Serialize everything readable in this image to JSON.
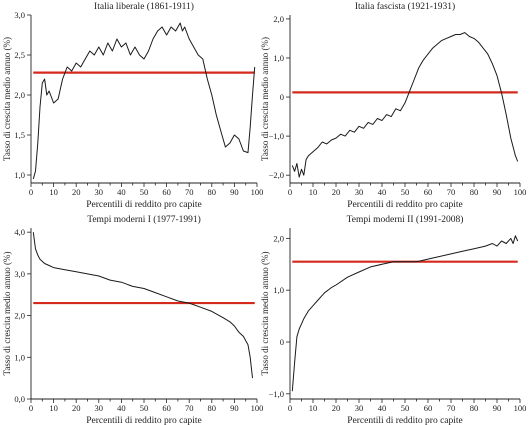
{
  "chart_data": [
    {
      "type": "line",
      "title": "Italia liberale (1861-1911)",
      "xlabel": "Percentili di reddito pro capite",
      "ylabel": "Tasso di crescita medio annuo (%)",
      "xlim": [
        0,
        100
      ],
      "ylim": [
        0.9,
        3.0
      ],
      "xticks": [
        0,
        10,
        20,
        30,
        40,
        50,
        60,
        70,
        80,
        90,
        100
      ],
      "yticks": [
        1.0,
        1.5,
        2.0,
        2.5,
        3.0
      ],
      "ytick_labels": [
        "1,0",
        "1,5",
        "2,0",
        "2,5",
        "3,0"
      ],
      "average_line": 2.28,
      "average_color": "#d42a1e",
      "series": [
        {
          "x": [
            1,
            2,
            3,
            4,
            5,
            6,
            7,
            8,
            10,
            12,
            14,
            16,
            18,
            20,
            22,
            24,
            26,
            28,
            30,
            32,
            34,
            36,
            38,
            40,
            42,
            44,
            46,
            48,
            50,
            52,
            54,
            56,
            58,
            60,
            62,
            64,
            66,
            67,
            68,
            70,
            72,
            74,
            76,
            78,
            80,
            82,
            84,
            86,
            88,
            90,
            92,
            94,
            96,
            97,
            98,
            99
          ],
          "y": [
            0.95,
            1.05,
            1.4,
            1.85,
            2.15,
            2.2,
            2.0,
            2.05,
            1.9,
            1.95,
            2.2,
            2.35,
            2.3,
            2.4,
            2.35,
            2.45,
            2.55,
            2.5,
            2.6,
            2.5,
            2.65,
            2.55,
            2.7,
            2.6,
            2.65,
            2.5,
            2.6,
            2.5,
            2.45,
            2.55,
            2.7,
            2.8,
            2.85,
            2.75,
            2.85,
            2.8,
            2.9,
            2.8,
            2.85,
            2.7,
            2.6,
            2.5,
            2.45,
            2.2,
            2.0,
            1.75,
            1.55,
            1.35,
            1.4,
            1.5,
            1.45,
            1.3,
            1.28,
            1.6,
            2.0,
            2.35
          ]
        }
      ]
    },
    {
      "type": "line",
      "title": "Italia fascista (1921-1931)",
      "xlabel": "Percentili di reddito pro capite",
      "ylabel": "Tasso di crescita medio annuo (%)",
      "xlim": [
        0,
        100
      ],
      "ylim": [
        -2.2,
        2.1
      ],
      "xticks": [
        0,
        10,
        20,
        30,
        40,
        50,
        60,
        70,
        80,
        90,
        100
      ],
      "yticks": [
        -2.0,
        -1.0,
        0,
        1.0,
        2.0
      ],
      "ytick_labels": [
        "−2,0",
        "−1,0",
        "0",
        "1,0",
        "2,0"
      ],
      "average_line": 0.12,
      "average_color": "#d42a1e",
      "series": [
        {
          "x": [
            1,
            2,
            3,
            4,
            5,
            6,
            7,
            8,
            10,
            12,
            14,
            16,
            18,
            20,
            22,
            24,
            26,
            28,
            30,
            32,
            34,
            36,
            38,
            40,
            42,
            44,
            46,
            48,
            50,
            52,
            54,
            56,
            58,
            60,
            62,
            64,
            66,
            68,
            70,
            72,
            74,
            76,
            78,
            80,
            82,
            84,
            86,
            88,
            90,
            92,
            94,
            96,
            98,
            99
          ],
          "y": [
            -1.75,
            -1.9,
            -1.7,
            -2.05,
            -1.85,
            -2.0,
            -1.6,
            -1.5,
            -1.4,
            -1.3,
            -1.15,
            -1.2,
            -1.1,
            -1.05,
            -0.95,
            -1.0,
            -0.85,
            -0.9,
            -0.75,
            -0.8,
            -0.65,
            -0.7,
            -0.55,
            -0.6,
            -0.45,
            -0.5,
            -0.3,
            -0.35,
            -0.15,
            0.15,
            0.45,
            0.75,
            0.95,
            1.1,
            1.25,
            1.35,
            1.45,
            1.5,
            1.55,
            1.6,
            1.6,
            1.65,
            1.55,
            1.5,
            1.4,
            1.25,
            1.1,
            0.85,
            0.55,
            0.1,
            -0.45,
            -1.05,
            -1.5,
            -1.65
          ]
        }
      ]
    },
    {
      "type": "line",
      "title": "Tempi moderni I (1977-1991)",
      "xlabel": "Percentili di reddito pro capite",
      "ylabel": "Tasso di crescita medio annuo (%)",
      "xlim": [
        0,
        100
      ],
      "ylim": [
        0.0,
        4.1
      ],
      "xticks": [
        0,
        10,
        20,
        30,
        40,
        50,
        60,
        70,
        80,
        90,
        100
      ],
      "yticks": [
        0.0,
        1.0,
        2.0,
        3.0,
        4.0
      ],
      "ytick_labels": [
        "0,0",
        "1,0",
        "2,0",
        "3,0",
        "4,0"
      ],
      "average_line": 2.3,
      "average_color": "#d42a1e",
      "series": [
        {
          "x": [
            1,
            2,
            3,
            4,
            5,
            6,
            8,
            10,
            15,
            20,
            25,
            30,
            35,
            40,
            45,
            50,
            55,
            60,
            65,
            70,
            75,
            80,
            85,
            88,
            90,
            92,
            94,
            95,
            96,
            97,
            98
          ],
          "y": [
            4.0,
            3.6,
            3.45,
            3.35,
            3.3,
            3.25,
            3.2,
            3.15,
            3.1,
            3.05,
            3.0,
            2.95,
            2.85,
            2.8,
            2.7,
            2.65,
            2.55,
            2.45,
            2.35,
            2.3,
            2.2,
            2.1,
            1.95,
            1.85,
            1.75,
            1.6,
            1.5,
            1.4,
            1.3,
            1.0,
            0.5
          ]
        }
      ]
    },
    {
      "type": "line",
      "title": "Tempi moderni II (1991-2008)",
      "xlabel": "Percentili di reddito pro capite",
      "ylabel": "Tasso di crescita medio annuo (%)",
      "xlim": [
        0,
        100
      ],
      "ylim": [
        -1.1,
        2.2
      ],
      "xticks": [
        0,
        10,
        20,
        30,
        40,
        50,
        60,
        70,
        80,
        90,
        100
      ],
      "yticks": [
        -1.0,
        0,
        1.0,
        2.0
      ],
      "ytick_labels": [
        "−1,0",
        "0",
        "1,0",
        "2,0"
      ],
      "average_line": 1.55,
      "average_color": "#d42a1e",
      "series": [
        {
          "x": [
            1,
            2,
            3,
            4,
            5,
            6,
            8,
            10,
            12,
            15,
            18,
            20,
            25,
            30,
            35,
            40,
            45,
            50,
            55,
            60,
            65,
            70,
            75,
            80,
            85,
            88,
            90,
            92,
            94,
            96,
            97,
            98,
            99
          ],
          "y": [
            -0.95,
            -0.4,
            0.1,
            0.25,
            0.35,
            0.45,
            0.6,
            0.7,
            0.8,
            0.95,
            1.05,
            1.1,
            1.25,
            1.35,
            1.45,
            1.5,
            1.55,
            1.55,
            1.55,
            1.6,
            1.65,
            1.7,
            1.75,
            1.8,
            1.85,
            1.9,
            1.85,
            1.95,
            1.9,
            2.0,
            1.9,
            2.05,
            1.95
          ]
        }
      ]
    }
  ]
}
